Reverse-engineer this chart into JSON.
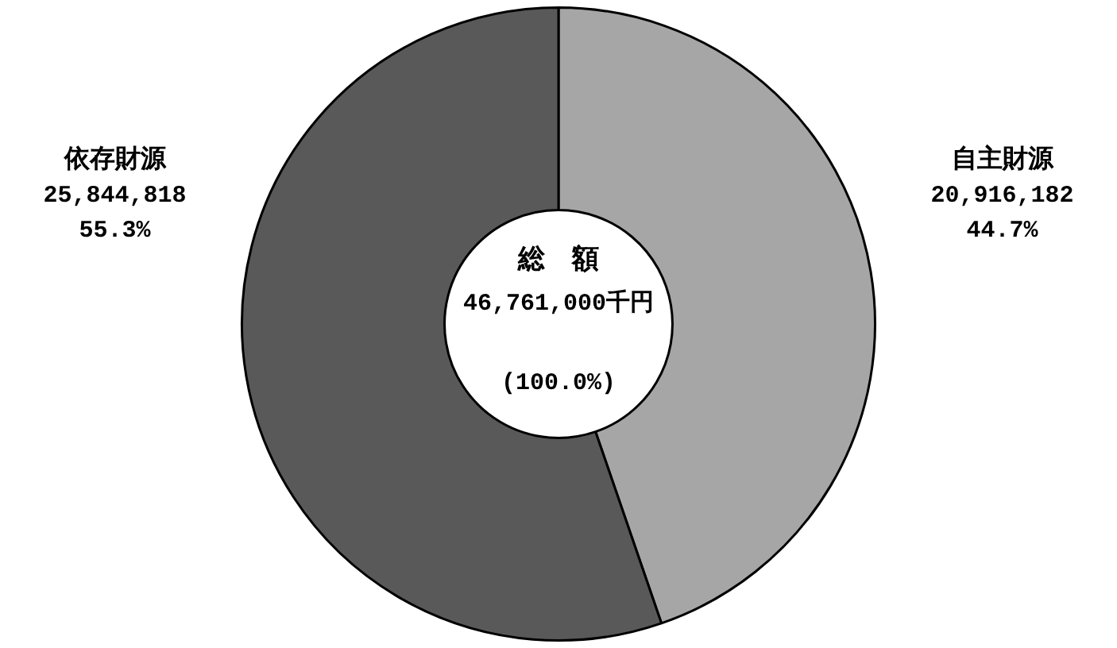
{
  "chart_data": {
    "type": "donut",
    "categories": [
      "自主財源",
      "依存財源"
    ],
    "values": [
      20916182,
      25844818
    ],
    "colors": [
      "#a6a6a6",
      "#595959"
    ],
    "value_labels": [
      "20,916,182\n44.7%",
      "25,844,818\n55.3%"
    ],
    "annotations": [
      "総　額",
      "46,761,000千円",
      "(100.0%)"
    ],
    "legend": false
  }
}
